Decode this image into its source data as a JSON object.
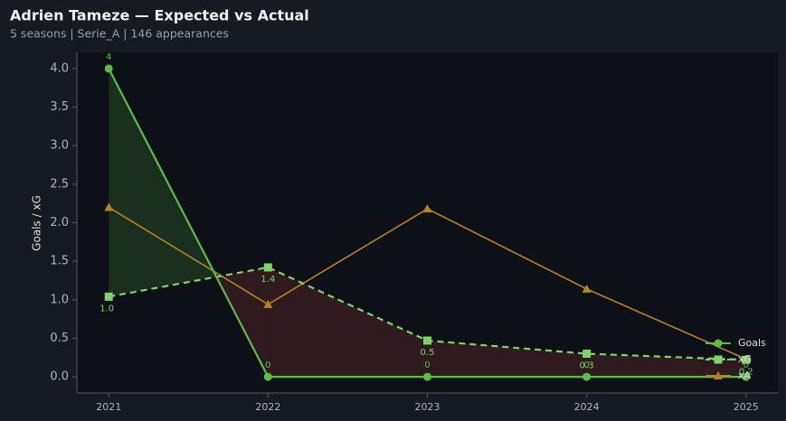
{
  "chart_data": {
    "type": "line",
    "title": "Adrien Tameze — Expected vs Actual",
    "subtitle": "5 seasons | Serie_A | 146 appearances",
    "y_label": "Goals / xG",
    "x": [
      2021,
      2022,
      2023,
      2024,
      2025
    ],
    "series": [
      {
        "name": "Goals",
        "color": "#5dbb46",
        "values": [
          4,
          0,
          0,
          0,
          0
        ]
      },
      {
        "name": "xG",
        "color": "#7fd36a",
        "values": [
          1.04,
          1.42,
          0.47,
          0.3,
          0.22
        ],
        "value_labels": [
          "1.0",
          "1.4",
          "0.5",
          "0.3",
          "0.2"
        ]
      },
      {
        "name": "xA",
        "color": "#b5841f",
        "values": [
          2.2,
          0.94,
          2.18,
          1.14,
          0.23
        ]
      }
    ],
    "xlim": [
      2020.8,
      2025.2
    ],
    "xticks": [
      2021,
      2022,
      2023,
      2024,
      2025
    ],
    "ylim": [
      -0.21,
      4.21
    ],
    "yticks": [
      {
        "value": 0,
        "label": "0.0"
      },
      {
        "value": 0.5,
        "label": "0.5"
      },
      {
        "value": 1,
        "label": "1.0"
      },
      {
        "value": 1.5,
        "label": "1.5"
      },
      {
        "value": 2,
        "label": "2.0"
      },
      {
        "value": 2.5,
        "label": "2.5"
      },
      {
        "value": 3,
        "label": "3.0"
      },
      {
        "value": 3.5,
        "label": "3.5"
      },
      {
        "value": 4,
        "label": "4.0"
      }
    ],
    "legend": "lower right"
  }
}
